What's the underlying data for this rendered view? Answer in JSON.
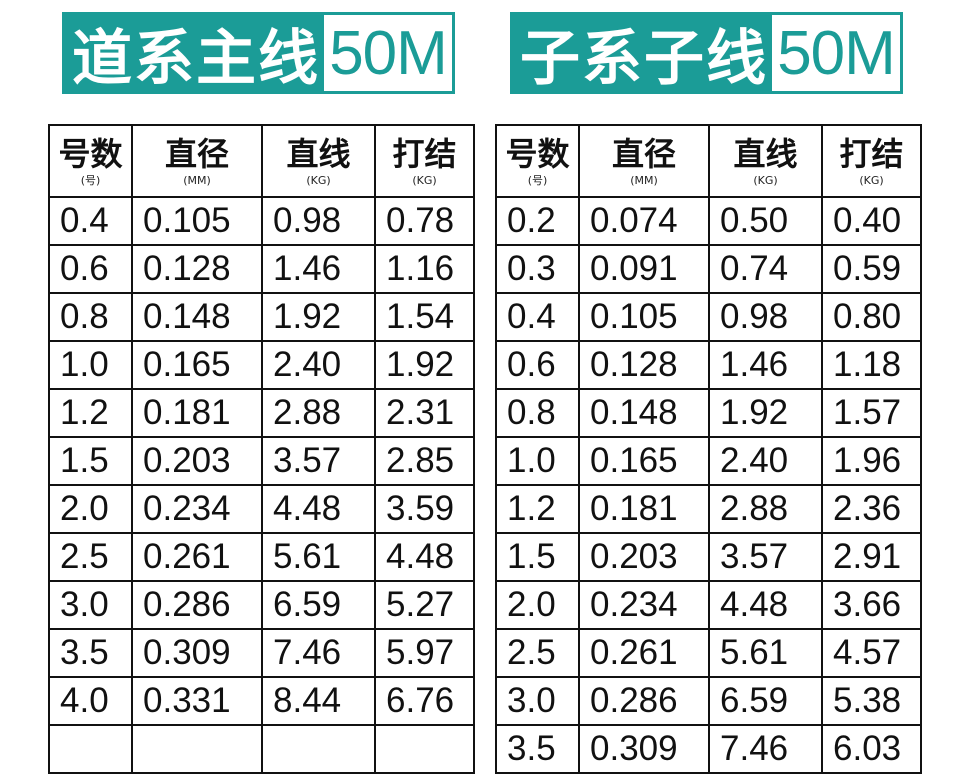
{
  "left": {
    "title": "道系主线",
    "length": "50M",
    "headers": [
      {
        "main": "号数",
        "sub": "(号)"
      },
      {
        "main": "直径",
        "sub": "(MM)"
      },
      {
        "main": "直线",
        "sub": "(KG)"
      },
      {
        "main": "打结",
        "sub": "(KG)"
      }
    ],
    "rows": [
      [
        "0.4",
        "0.105",
        "0.98",
        "0.78"
      ],
      [
        "0.6",
        "0.128",
        "1.46",
        "1.16"
      ],
      [
        "0.8",
        "0.148",
        "1.92",
        "1.54"
      ],
      [
        "1.0",
        "0.165",
        "2.40",
        "1.92"
      ],
      [
        "1.2",
        "0.181",
        "2.88",
        "2.31"
      ],
      [
        "1.5",
        "0.203",
        "3.57",
        "2.85"
      ],
      [
        "2.0",
        "0.234",
        "4.48",
        "3.59"
      ],
      [
        "2.5",
        "0.261",
        "5.61",
        "4.48"
      ],
      [
        "3.0",
        "0.286",
        "6.59",
        "5.27"
      ],
      [
        "3.5",
        "0.309",
        "7.46",
        "5.97"
      ],
      [
        "4.0",
        "0.331",
        "8.44",
        "6.76"
      ],
      [
        "",
        "",
        "",
        ""
      ]
    ]
  },
  "right": {
    "title": "子系子线",
    "length": "50M",
    "headers": [
      {
        "main": "号数",
        "sub": "(号)"
      },
      {
        "main": "直径",
        "sub": "(MM)"
      },
      {
        "main": "直线",
        "sub": "(KG)"
      },
      {
        "main": "打结",
        "sub": "(KG)"
      }
    ],
    "rows": [
      [
        "0.2",
        "0.074",
        "0.50",
        "0.40"
      ],
      [
        "0.3",
        "0.091",
        "0.74",
        "0.59"
      ],
      [
        "0.4",
        "0.105",
        "0.98",
        "0.80"
      ],
      [
        "0.6",
        "0.128",
        "1.46",
        "1.18"
      ],
      [
        "0.8",
        "0.148",
        "1.92",
        "1.57"
      ],
      [
        "1.0",
        "0.165",
        "2.40",
        "1.96"
      ],
      [
        "1.2",
        "0.181",
        "2.88",
        "2.36"
      ],
      [
        "1.5",
        "0.203",
        "3.57",
        "2.91"
      ],
      [
        "2.0",
        "0.234",
        "4.48",
        "3.66"
      ],
      [
        "2.5",
        "0.261",
        "5.61",
        "4.57"
      ],
      [
        "3.0",
        "0.286",
        "6.59",
        "5.38"
      ],
      [
        "3.5",
        "0.309",
        "7.46",
        "6.03"
      ]
    ]
  },
  "colors": {
    "banner": "#1b9c97",
    "banner_text": "#ffffff",
    "grid": "#111111"
  }
}
